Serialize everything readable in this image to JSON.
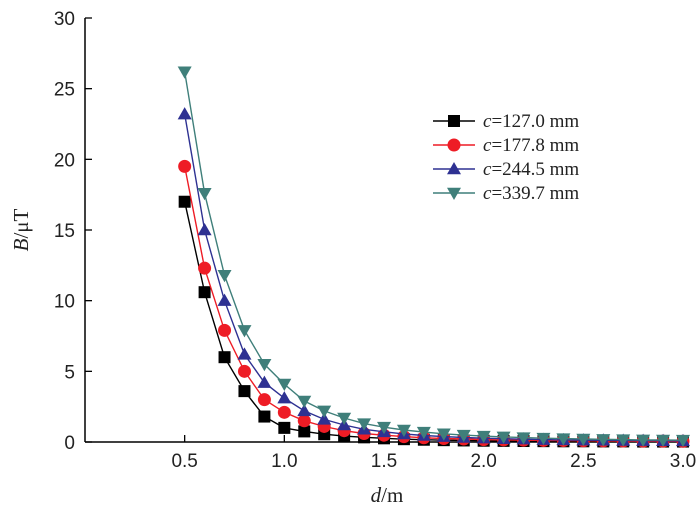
{
  "chart_data": {
    "type": "line",
    "title": "",
    "xlabel": {
      "var": "d",
      "unit": "/m"
    },
    "ylabel": {
      "var": "B",
      "unit": "/μT"
    },
    "xlim": [
      0,
      3.0
    ],
    "ylim": [
      0,
      30
    ],
    "xticks": [
      0.5,
      1.0,
      1.5,
      2.0,
      2.5,
      3.0
    ],
    "xtick_labels": [
      "0.5",
      "1.0",
      "1.5",
      "2.0",
      "2.5",
      "3.0"
    ],
    "yticks": [
      0,
      5,
      10,
      15,
      20,
      25,
      30
    ],
    "ytick_labels": [
      "0",
      "5",
      "10",
      "15",
      "20",
      "25",
      "30"
    ],
    "grid": false,
    "legend_position": "upper-right",
    "x": [
      0.5,
      0.6,
      0.7,
      0.8,
      0.9,
      1.0,
      1.1,
      1.2,
      1.3,
      1.4,
      1.5,
      1.6,
      1.7,
      1.8,
      1.9,
      2.0,
      2.1,
      2.2,
      2.3,
      2.4,
      2.5,
      2.6,
      2.7,
      2.8,
      2.9,
      3.0
    ],
    "series": [
      {
        "name": "c=127.0 mm",
        "legend_var": "c",
        "legend_rest": "=127.0 mm",
        "color": "#000000",
        "marker": "square",
        "values": [
          17.0,
          10.6,
          6.0,
          3.6,
          1.8,
          1.0,
          0.75,
          0.55,
          0.42,
          0.33,
          0.26,
          0.2,
          0.16,
          0.13,
          0.11,
          0.09,
          0.08,
          0.07,
          0.06,
          0.05,
          0.05,
          0.04,
          0.04,
          0.03,
          0.03,
          0.03
        ]
      },
      {
        "name": "c=177.8 mm",
        "legend_var": "c",
        "legend_rest": "=177.8 mm",
        "color": "#ee1c25",
        "marker": "circle",
        "values": [
          19.5,
          12.3,
          7.9,
          5.0,
          3.0,
          2.1,
          1.5,
          1.1,
          0.8,
          0.6,
          0.48,
          0.38,
          0.3,
          0.25,
          0.21,
          0.17,
          0.15,
          0.13,
          0.11,
          0.1,
          0.09,
          0.08,
          0.07,
          0.06,
          0.06,
          0.05
        ]
      },
      {
        "name": "c=244.5 mm",
        "legend_var": "c",
        "legend_rest": "=244.5 mm",
        "color": "#2e3192",
        "marker": "triangle-up",
        "values": [
          23.2,
          15.0,
          10.0,
          6.2,
          4.2,
          3.1,
          2.2,
          1.6,
          1.2,
          0.9,
          0.72,
          0.57,
          0.46,
          0.38,
          0.32,
          0.27,
          0.23,
          0.2,
          0.17,
          0.15,
          0.13,
          0.12,
          0.11,
          0.1,
          0.09,
          0.08
        ]
      },
      {
        "name": "c=339.7 mm",
        "legend_var": "c",
        "legend_rest": "=339.7 mm",
        "color": "#3f7f7a",
        "marker": "triangle-down",
        "values": [
          26.2,
          17.6,
          11.8,
          7.9,
          5.5,
          4.1,
          2.9,
          2.2,
          1.7,
          1.3,
          1.05,
          0.85,
          0.7,
          0.58,
          0.49,
          0.42,
          0.36,
          0.31,
          0.27,
          0.24,
          0.21,
          0.19,
          0.17,
          0.15,
          0.14,
          0.13
        ]
      }
    ]
  }
}
